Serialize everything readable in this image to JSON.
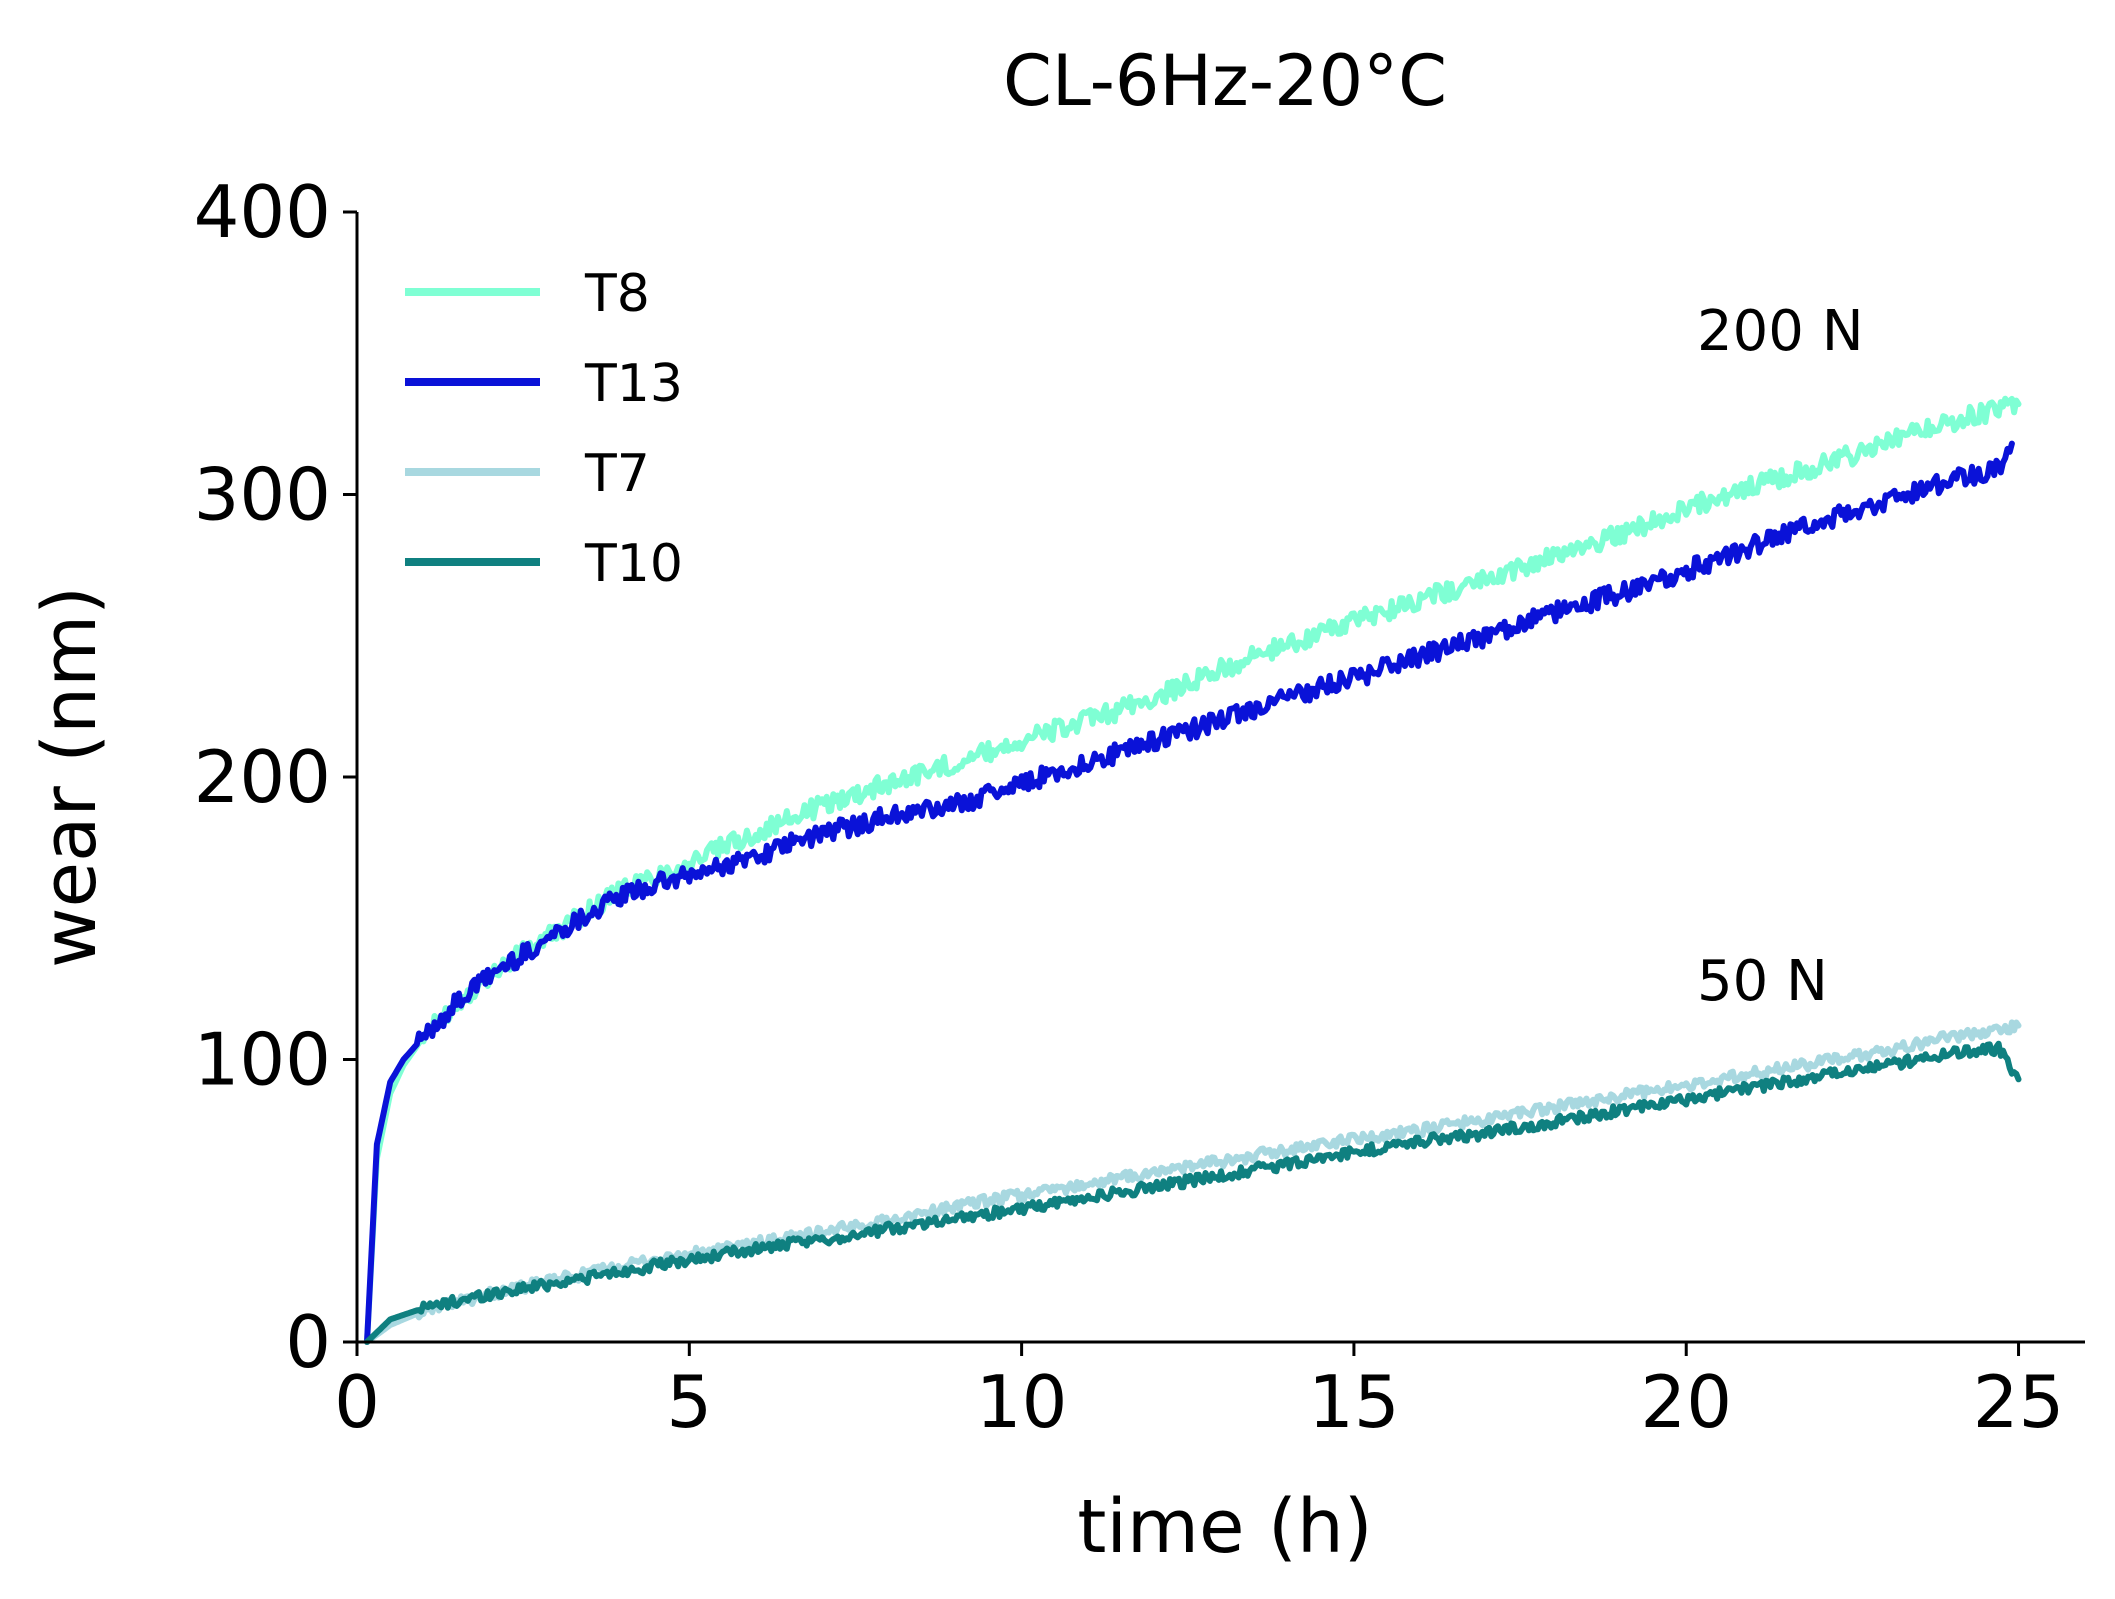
{
  "chart_data": {
    "type": "line",
    "title": "CL-6Hz-20°C",
    "xlabel": "time (h)",
    "ylabel": "wear (nm)",
    "xlim": [
      0,
      26
    ],
    "ylim": [
      0,
      400
    ],
    "xticks": [
      0,
      5,
      10,
      15,
      20,
      25
    ],
    "yticks": [
      0,
      100,
      200,
      300,
      400
    ],
    "xtick_labels": [
      "0",
      "5",
      "10",
      "15",
      "20",
      "25"
    ],
    "ytick_labels": [
      "0",
      "100",
      "200",
      "300",
      "400"
    ],
    "grid": false,
    "legend_position": "top-left",
    "annotations": [
      {
        "text": "200 N",
        "x": 20,
        "y": 355
      },
      {
        "text": "50 N",
        "x": 20,
        "y": 125
      }
    ],
    "series": [
      {
        "name": "T8",
        "color": "#7fffd4",
        "x": [
          0.15,
          0.3,
          0.5,
          0.7,
          1,
          1.5,
          2,
          2.5,
          3,
          3.5,
          4,
          4.5,
          5,
          6,
          7,
          8,
          9,
          10,
          11,
          12,
          13,
          14,
          15,
          16,
          17,
          18,
          19,
          20,
          21,
          22,
          23,
          24,
          25
        ],
        "y": [
          0,
          65,
          88,
          98,
          108,
          120,
          130,
          138,
          145,
          153,
          160,
          165,
          170,
          180,
          190,
          198,
          205,
          213,
          220,
          228,
          238,
          247,
          255,
          263,
          270,
          278,
          286,
          295,
          303,
          310,
          318,
          326,
          332
        ]
      },
      {
        "name": "T13",
        "color": "#0a12d8",
        "x": [
          0.15,
          0.3,
          0.5,
          0.7,
          1,
          1.5,
          2,
          2.5,
          3,
          3.5,
          4,
          4.5,
          5,
          6,
          7,
          8,
          9,
          10,
          11,
          12,
          13,
          14,
          15,
          16,
          17,
          18,
          19,
          20,
          21,
          22,
          23,
          24,
          24.8,
          24.9
        ],
        "y": [
          0,
          70,
          92,
          100,
          108,
          120,
          130,
          137,
          145,
          152,
          158,
          162,
          165,
          172,
          180,
          186,
          190,
          198,
          205,
          213,
          220,
          228,
          235,
          243,
          250,
          258,
          265,
          273,
          282,
          290,
          298,
          305,
          310,
          318
        ]
      },
      {
        "name": "T7",
        "color": "#a8d8e0",
        "x": [
          0.15,
          0.5,
          1,
          2,
          3,
          4,
          5,
          6,
          7,
          8,
          9,
          10,
          11,
          12,
          13,
          14,
          15,
          16,
          17,
          18,
          19,
          20,
          21,
          22,
          23,
          24,
          25
        ],
        "y": [
          0,
          6,
          11,
          17,
          22,
          27,
          31,
          35,
          39,
          43,
          48,
          52,
          56,
          60,
          64,
          68,
          72,
          75,
          79,
          83,
          87,
          91,
          95,
          99,
          103,
          108,
          112
        ]
      },
      {
        "name": "T10",
        "color": "#0f8080",
        "x": [
          0.15,
          0.5,
          1,
          2,
          3,
          4,
          5,
          6,
          7,
          8,
          9,
          10,
          11,
          12,
          13,
          14,
          15,
          16,
          17,
          18,
          19,
          20,
          21,
          22,
          23,
          24,
          24.7,
          25
        ],
        "y": [
          0,
          8,
          12,
          17,
          21,
          25,
          29,
          33,
          36,
          40,
          44,
          47,
          51,
          55,
          59,
          63,
          67,
          71,
          74,
          78,
          82,
          86,
          90,
          94,
          98,
          102,
          104,
          93
        ]
      }
    ]
  }
}
